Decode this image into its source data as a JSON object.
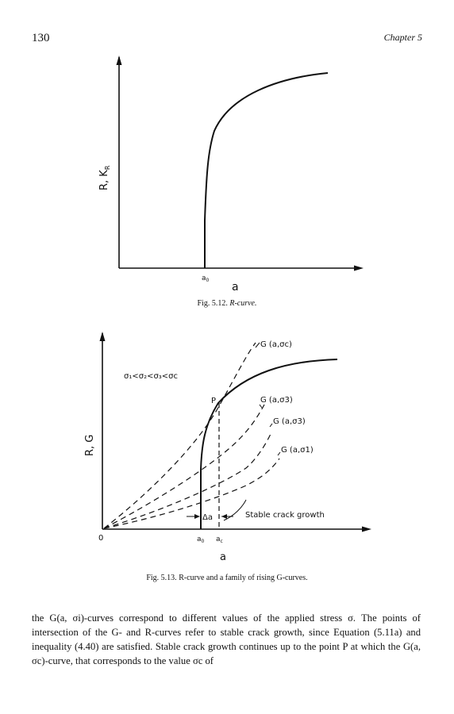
{
  "header": {
    "page_number": "130",
    "chapter": "Chapter 5"
  },
  "figure_512": {
    "y_axis_label": "R, K",
    "y_axis_label_sub": "R",
    "x_origin_tick": "a",
    "x_origin_tick_sub": "0",
    "x_axis_label": "a",
    "caption_label": "Fig. 5.12.",
    "caption_text": "R-curve."
  },
  "figure_513": {
    "y_axis_label": "R, G",
    "origin_label": "0",
    "x_tick_a0": "a",
    "x_tick_a0_sub": "0",
    "x_tick_ac": "a",
    "x_tick_ac_sub": "c",
    "x_axis_label": "a",
    "stress_ordering": "σ₁<σ₂<σ₃<σc",
    "point_label": "P",
    "curve_labels": {
      "g_sigma_c": "G (a,σc)",
      "g_sigma_3_upper": "G (a,σ3)",
      "g_sigma_3_lower": "G (a,σ3)",
      "g_sigma_1": "G (a,σ1)"
    },
    "delta_a_label": "Δa",
    "stable_growth_label": "Stable crack growth",
    "caption_label": "Fig. 5.13.",
    "caption_text": "R-curve and a family of rising G-curves."
  },
  "body": {
    "paragraph": "the G(a, σi)-curves correspond to different values of the applied stress σ. The points of intersection of the G- and R-curves refer to stable crack growth, since Equation (5.11a) and inequality (4.40) are satisfied. Stable crack growth continues up to the point P at which the G(a, σc)-curve, that corresponds to the value σc of"
  }
}
